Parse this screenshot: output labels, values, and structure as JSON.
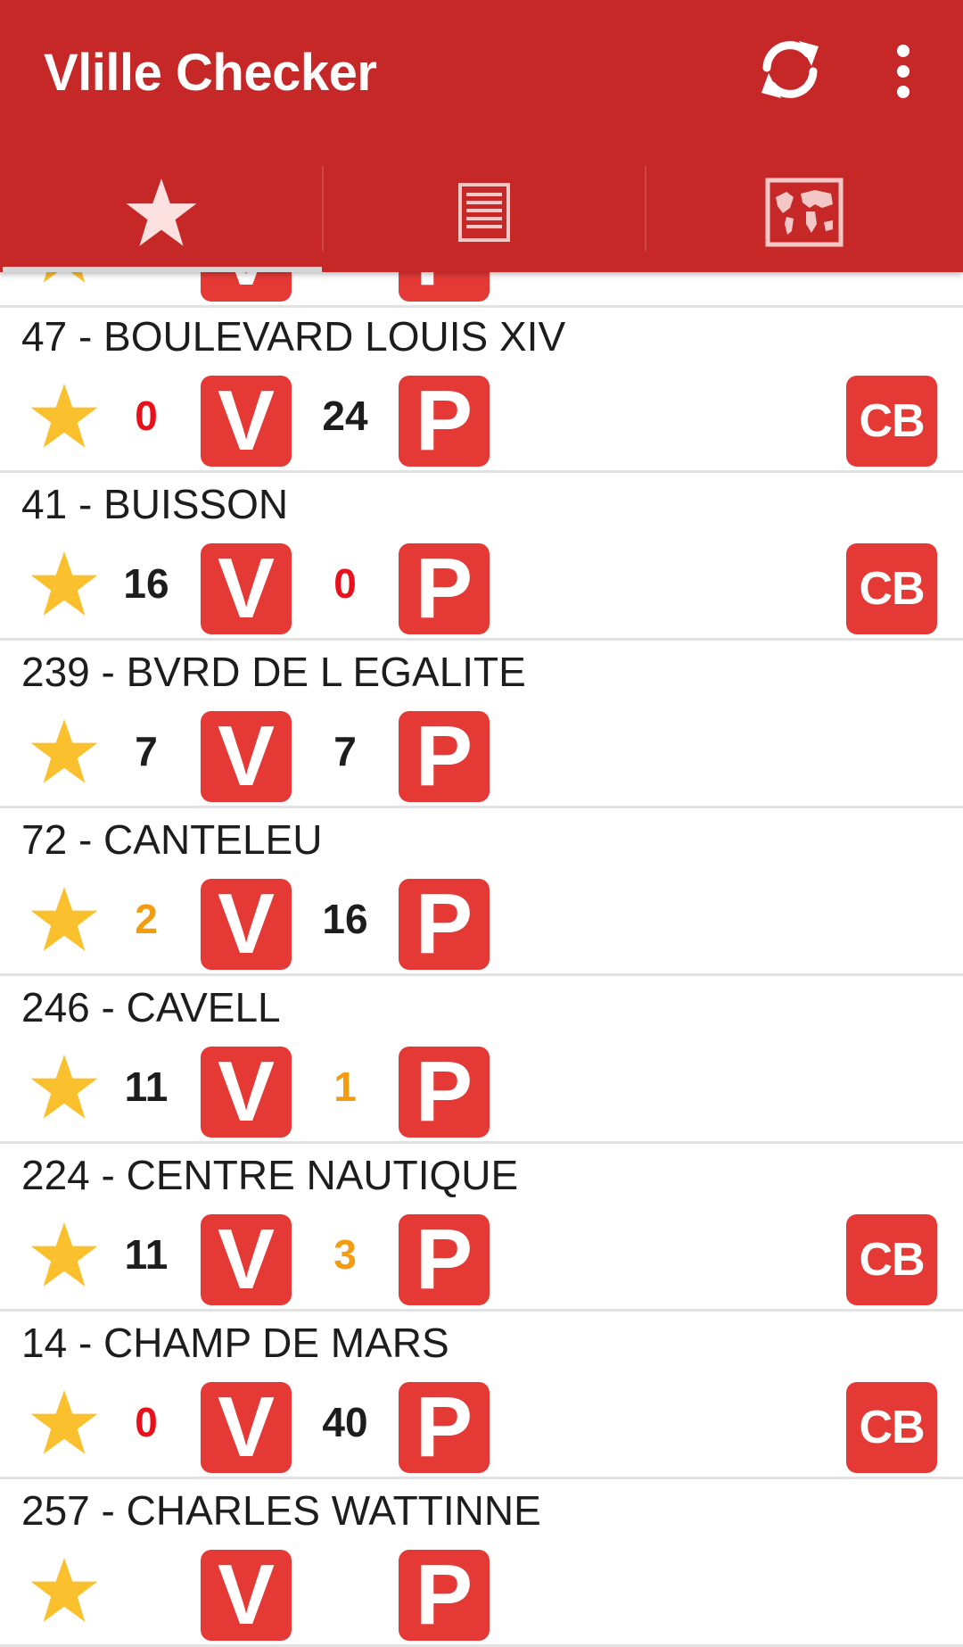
{
  "app": {
    "title": "Vlille Checker"
  },
  "toolbar": {
    "refresh_icon": "refresh-icon",
    "overflow_icon": "more-vertical-icon"
  },
  "tabs": [
    {
      "id": "favorites",
      "icon": "star-icon",
      "selected": true
    },
    {
      "id": "list",
      "icon": "list-icon",
      "selected": false
    },
    {
      "id": "map",
      "icon": "world-map-icon",
      "selected": false
    }
  ],
  "colors": {
    "app_bar": "#c62828",
    "tile": "#e53935",
    "star": "#fbc02d",
    "count_zero": "#e8101a",
    "count_low": "#f39c12",
    "count_ok": "#1d1d1d"
  },
  "stations": [
    {
      "name": "",
      "bikes": "",
      "stands": "",
      "bikes_level": "ok",
      "stands_level": "ok",
      "cb": false,
      "v_label": "V",
      "p_label": "P",
      "cb_label": "CB"
    },
    {
      "name": "47 - BOULEVARD LOUIS XIV",
      "bikes": "0",
      "stands": "24",
      "bikes_level": "zero",
      "stands_level": "ok",
      "cb": true,
      "v_label": "V",
      "p_label": "P",
      "cb_label": "CB"
    },
    {
      "name": "41 - BUISSON",
      "bikes": "16",
      "stands": "0",
      "bikes_level": "ok",
      "stands_level": "zero",
      "cb": true,
      "v_label": "V",
      "p_label": "P",
      "cb_label": "CB"
    },
    {
      "name": "239 - BVRD DE L EGALITE",
      "bikes": "7",
      "stands": "7",
      "bikes_level": "ok",
      "stands_level": "ok",
      "cb": false,
      "v_label": "V",
      "p_label": "P",
      "cb_label": "CB"
    },
    {
      "name": "72 - CANTELEU",
      "bikes": "2",
      "stands": "16",
      "bikes_level": "low",
      "stands_level": "ok",
      "cb": false,
      "v_label": "V",
      "p_label": "P",
      "cb_label": "CB"
    },
    {
      "name": "246 - CAVELL",
      "bikes": "11",
      "stands": "1",
      "bikes_level": "ok",
      "stands_level": "low",
      "cb": false,
      "v_label": "V",
      "p_label": "P",
      "cb_label": "CB"
    },
    {
      "name": "224 - CENTRE NAUTIQUE",
      "bikes": "11",
      "stands": "3",
      "bikes_level": "ok",
      "stands_level": "low",
      "cb": true,
      "v_label": "V",
      "p_label": "P",
      "cb_label": "CB"
    },
    {
      "name": "14 - CHAMP DE MARS",
      "bikes": "0",
      "stands": "40",
      "bikes_level": "zero",
      "stands_level": "ok",
      "cb": true,
      "v_label": "V",
      "p_label": "P",
      "cb_label": "CB"
    },
    {
      "name": "257 - CHARLES WATTINNE",
      "bikes": "",
      "stands": "",
      "bikes_level": "ok",
      "stands_level": "ok",
      "cb": false,
      "v_label": "V",
      "p_label": "P",
      "cb_label": "CB"
    }
  ]
}
